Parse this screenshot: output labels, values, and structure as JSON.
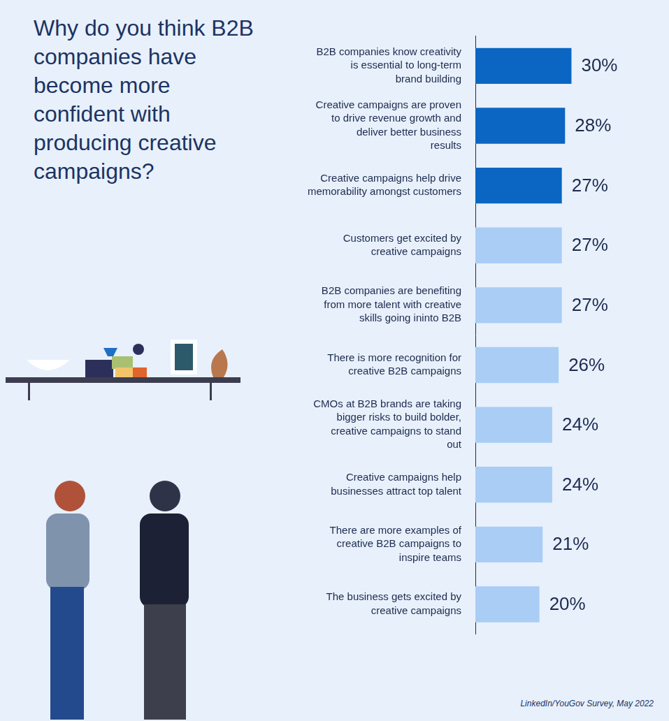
{
  "chart_data": {
    "type": "bar",
    "title": "Why do you think B2B companies have become more confident with producing creative campaigns?",
    "categories": [
      "B2B companies know creativity is essential to long-term brand building",
      "Creative campaigns are proven to drive revenue growth and deliver better business results",
      "Creative campaigns help drive memorability amongst customers",
      "Customers get excited by creative campaigns",
      "B2B companies are benefiting from more talent with creative skills going ininto B2B",
      "There is more recognition for creative B2B campaigns",
      "CMOs at B2B brands are taking bigger risks to build bolder, creative campaigns to stand out",
      "Creative campaigns help businesses attract top talent",
      "There are more examples of creative B2B campaigns to inspire teams",
      "The business gets excited by creative campaigns"
    ],
    "values": [
      30,
      28,
      27,
      27,
      27,
      26,
      24,
      24,
      21,
      20
    ],
    "value_labels": [
      "30%",
      "28%",
      "27%",
      "27%",
      "27%",
      "26%",
      "24%",
      "24%",
      "21%",
      "20%"
    ],
    "colors": [
      "#0a66c2",
      "#0a66c2",
      "#0a66c2",
      "#a9cdf5",
      "#a9cdf5",
      "#a9cdf5",
      "#a9cdf5",
      "#a9cdf5",
      "#a9cdf5",
      "#a9cdf5"
    ],
    "orientation": "horizontal",
    "xlim": [
      0,
      55
    ],
    "data_labels": true,
    "tick_labels": "y",
    "grid": false,
    "annotations": [
      "LinkedIn/YouGov Survey, May 2022"
    ]
  }
}
